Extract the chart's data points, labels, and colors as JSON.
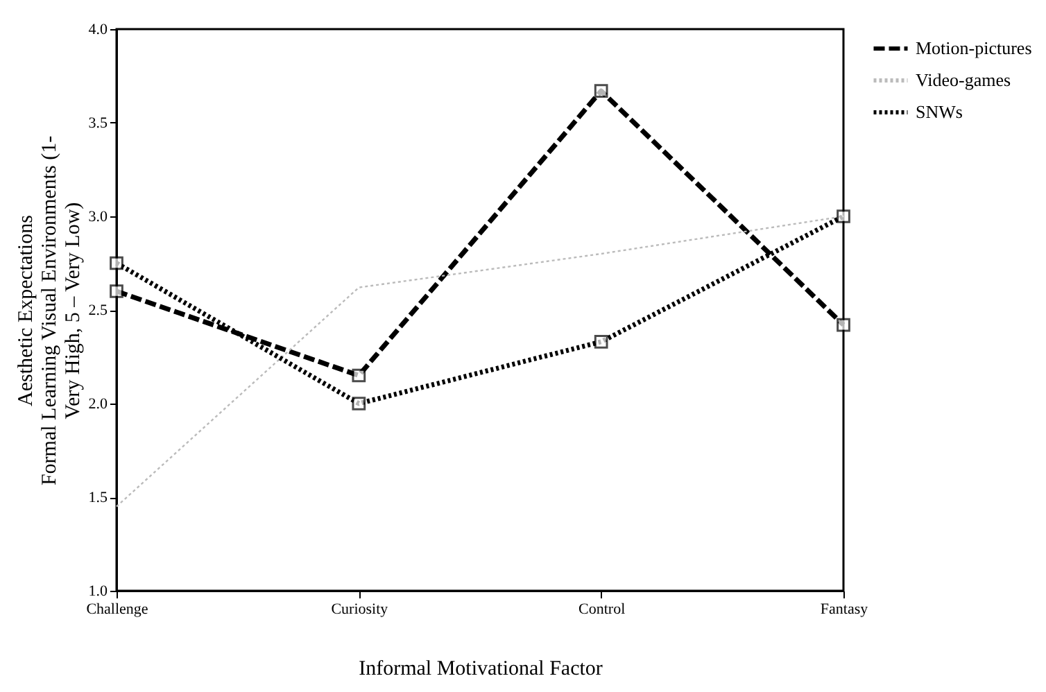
{
  "chart_data": {
    "type": "line",
    "xlabel": "Informal Motivational Factor",
    "ylabel": "Aesthetic Expectations\nFormal Learning Visual Environments (1-\nVery High, 5 – Very Low)",
    "categories": [
      "Challenge",
      "Curiosity",
      "Control",
      "Fantasy"
    ],
    "series": [
      {
        "name": "Motion-pictures",
        "color": "#000000",
        "values": [
          2.6,
          2.15,
          3.67,
          2.42
        ],
        "line_style": "dashed",
        "marker": "square"
      },
      {
        "name": "Video-games",
        "color": "#bbbbbb",
        "values": [
          1.45,
          2.62,
          2.8,
          3.0
        ],
        "line_style": "dotted",
        "marker": "none"
      },
      {
        "name": "SNWs",
        "color": "#000000",
        "values": [
          2.75,
          2.0,
          2.33,
          3.0
        ],
        "line_style": "dotted",
        "marker": "square"
      }
    ],
    "ylim": [
      1.0,
      4.0
    ],
    "yticks": [
      {
        "value": 1.0,
        "label": "1.0"
      },
      {
        "value": 1.5,
        "label": "1.5"
      },
      {
        "value": 2.0,
        "label": "2.0"
      },
      {
        "value": 2.5,
        "label": "2.5"
      },
      {
        "value": 3.0,
        "label": "3.0"
      },
      {
        "value": 3.5,
        "label": "3.5"
      },
      {
        "value": 4.0,
        "label": "4.0"
      }
    ],
    "grid": false,
    "legend": "right"
  }
}
